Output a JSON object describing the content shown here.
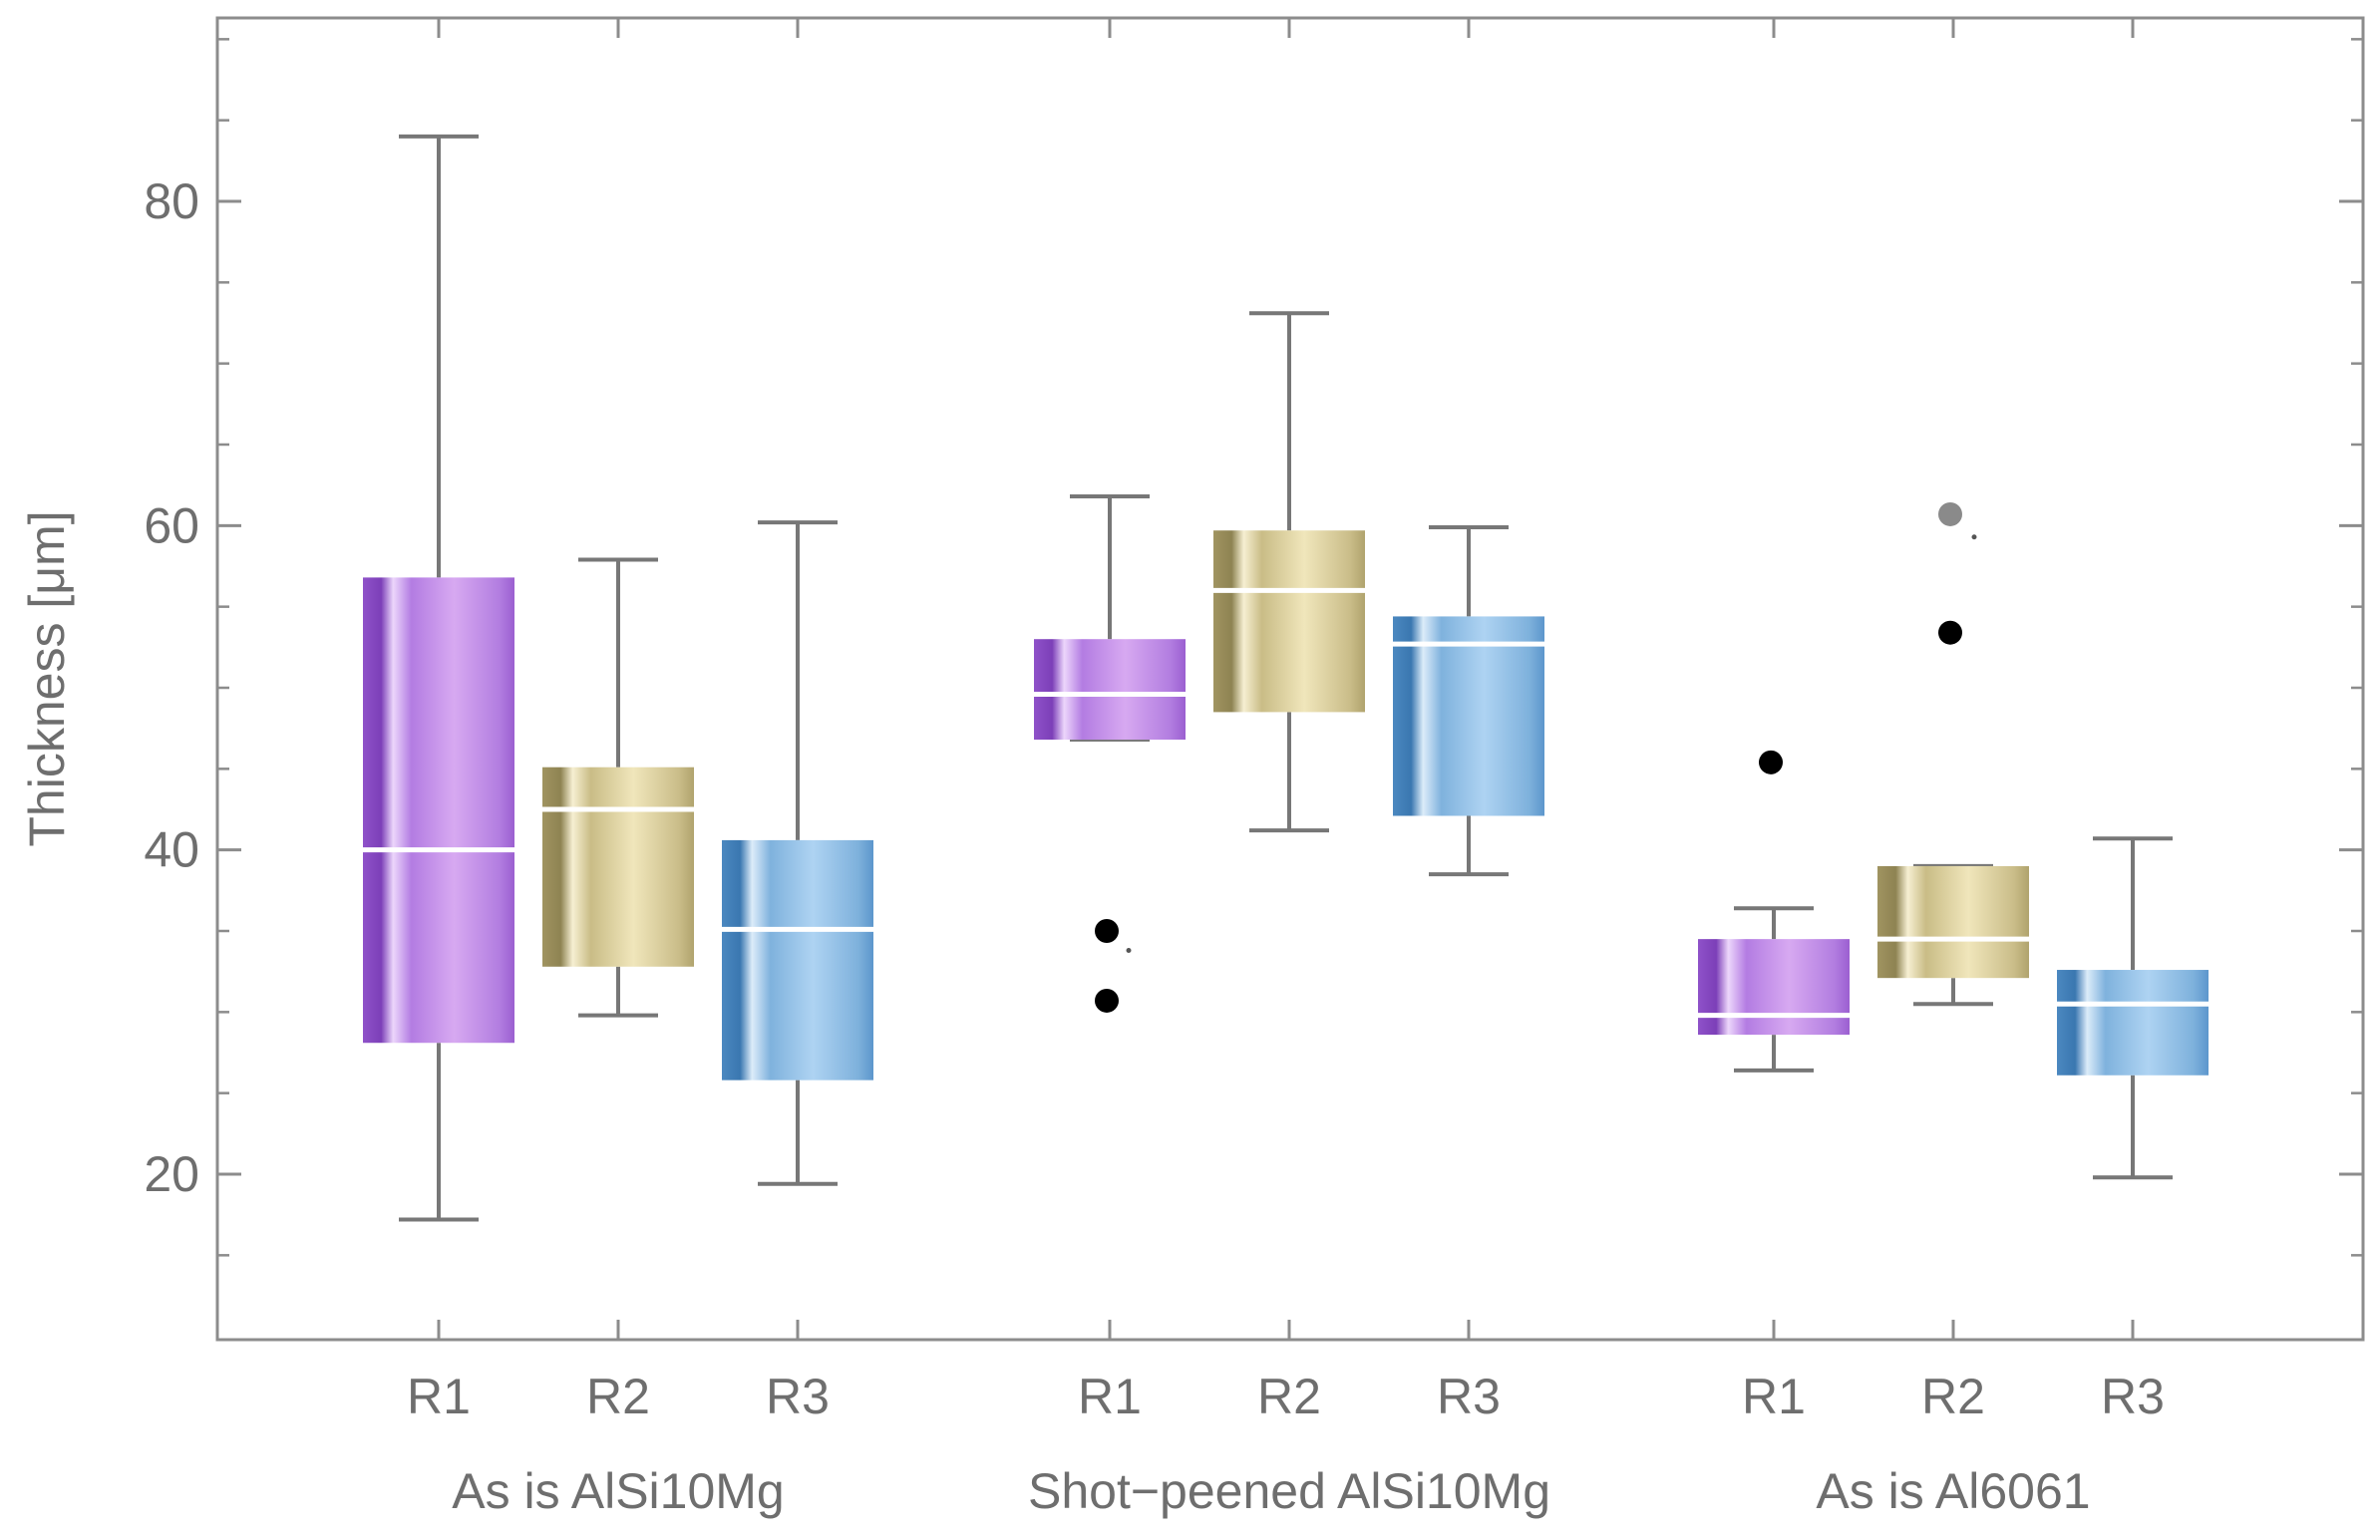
{
  "chart_data": {
    "type": "box",
    "title": "",
    "xlabel": "",
    "ylabel": "Thickness [μm]",
    "ylim": [
      10,
      92
    ],
    "yticks_major": [
      20,
      40,
      60,
      80
    ],
    "yticks_minor": [
      15,
      25,
      30,
      35,
      45,
      50,
      55,
      65,
      70,
      75,
      85,
      90
    ],
    "grid": false,
    "series_colors": {
      "R1": [
        "#8f52c9",
        "#dcb0f3",
        "#9b5fd0"
      ],
      "R2": [
        "#a09461",
        "#f2e9bf",
        "#b0a36d"
      ],
      "R3": [
        "#4b88c0",
        "#b4d8f4",
        "#5c96cc"
      ]
    },
    "whisker_color": "#777777",
    "median_color": "#ffffff",
    "outlier_color": "#000000",
    "far_outlier_color": "#8a8a8a",
    "groups": [
      {
        "label": "As is AlSi10Mg",
        "boxes": [
          {
            "name": "R1",
            "min": 17.2,
            "q1": 28.1,
            "median": 40.0,
            "q3": 56.8,
            "max": 84.0,
            "outliers": [],
            "far_outliers": []
          },
          {
            "name": "R2",
            "min": 29.8,
            "q1": 32.8,
            "median": 42.5,
            "q3": 45.1,
            "max": 57.9,
            "outliers": [],
            "far_outliers": []
          },
          {
            "name": "R3",
            "min": 19.4,
            "q1": 25.8,
            "median": 35.1,
            "q3": 40.6,
            "max": 60.2,
            "outliers": [],
            "far_outliers": []
          }
        ]
      },
      {
        "label": "Shot−peened AlSi10Mg",
        "boxes": [
          {
            "name": "R1",
            "min": 46.8,
            "q1": 46.8,
            "median": 49.6,
            "q3": 53.0,
            "max": 61.8,
            "outliers": [
              35.0,
              30.7
            ],
            "far_outliers": []
          },
          {
            "name": "R2",
            "min": 41.2,
            "q1": 48.5,
            "median": 56.0,
            "q3": 59.7,
            "max": 73.1,
            "outliers": [],
            "far_outliers": []
          },
          {
            "name": "R3",
            "min": 38.5,
            "q1": 42.1,
            "median": 52.7,
            "q3": 54.4,
            "max": 59.9,
            "outliers": [],
            "far_outliers": []
          }
        ]
      },
      {
        "label": "As is Al6061",
        "boxes": [
          {
            "name": "R1",
            "min": 26.4,
            "q1": 28.6,
            "median": 29.8,
            "q3": 34.5,
            "max": 36.4,
            "outliers": [
              45.4
            ],
            "far_outliers": []
          },
          {
            "name": "R2",
            "min": 30.5,
            "q1": 32.1,
            "median": 34.5,
            "q3": 39.0,
            "max": 39.0,
            "outliers": [
              53.4
            ],
            "far_outliers": [
              60.7
            ]
          },
          {
            "name": "R3",
            "min": 19.8,
            "q1": 26.1,
            "median": 30.5,
            "q3": 32.6,
            "max": 40.7,
            "outliers": [],
            "far_outliers": []
          }
        ]
      }
    ]
  }
}
